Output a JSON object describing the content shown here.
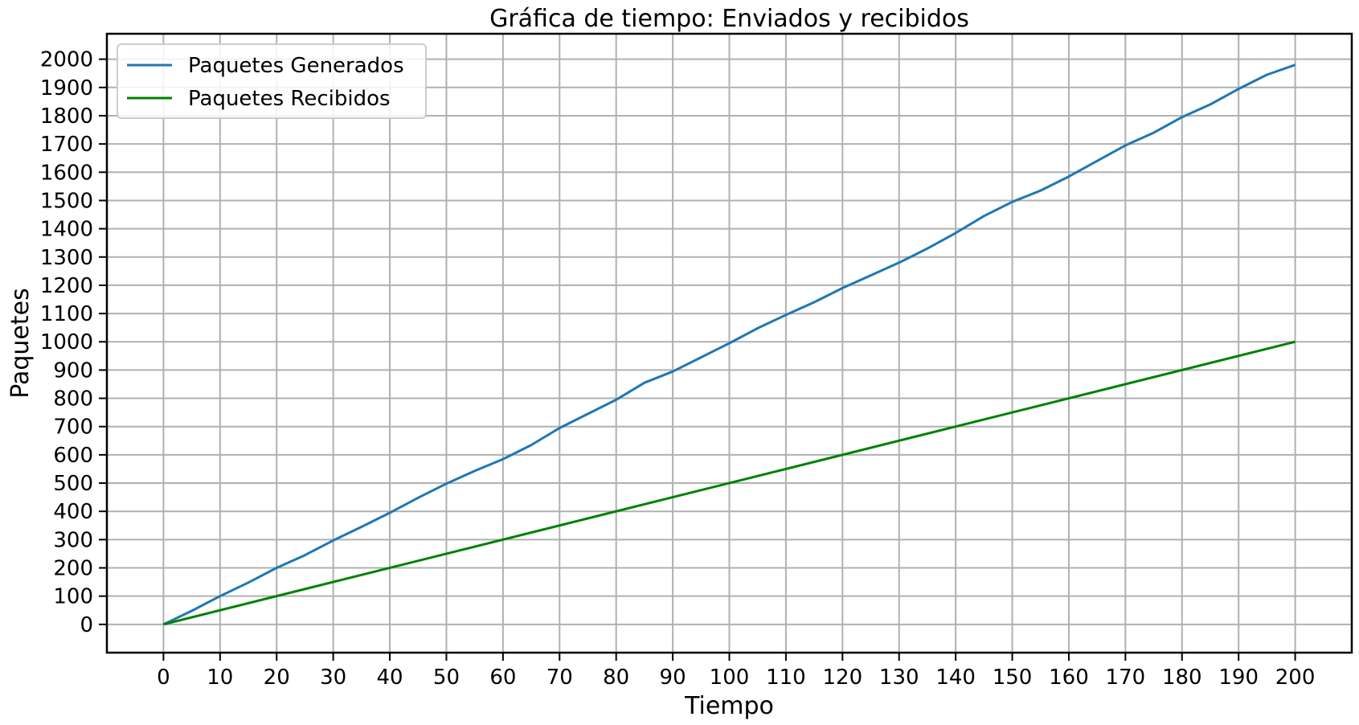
{
  "chart_data": {
    "type": "line",
    "title": "Gráfica de tiempo: Enviados y recibidos",
    "xlabel": "Tiempo",
    "ylabel": "Paquetes",
    "xlim": [
      -10,
      210
    ],
    "ylim": [
      -100,
      2090
    ],
    "xticks": [
      0,
      10,
      20,
      30,
      40,
      50,
      60,
      70,
      80,
      90,
      100,
      110,
      120,
      130,
      140,
      150,
      160,
      170,
      180,
      190,
      200
    ],
    "yticks": [
      0,
      100,
      200,
      300,
      400,
      500,
      600,
      700,
      800,
      900,
      1000,
      1100,
      1200,
      1300,
      1400,
      1500,
      1600,
      1700,
      1800,
      1900,
      2000
    ],
    "grid": true,
    "legend_position": "top-left",
    "series": [
      {
        "name": "Paquetes Generados",
        "color": "#1f77b4",
        "x": [
          0,
          5,
          10,
          15,
          20,
          25,
          30,
          35,
          40,
          45,
          50,
          55,
          60,
          65,
          70,
          75,
          80,
          85,
          90,
          95,
          100,
          105,
          110,
          115,
          120,
          125,
          130,
          135,
          140,
          145,
          150,
          155,
          160,
          165,
          170,
          175,
          180,
          185,
          190,
          195,
          200
        ],
        "y": [
          0,
          48,
          100,
          148,
          200,
          245,
          297,
          345,
          395,
          448,
          498,
          543,
          585,
          635,
          695,
          745,
          795,
          855,
          895,
          945,
          995,
          1048,
          1095,
          1140,
          1190,
          1235,
          1280,
          1330,
          1385,
          1445,
          1495,
          1535,
          1585,
          1640,
          1695,
          1740,
          1795,
          1840,
          1895,
          1945,
          1980
        ]
      },
      {
        "name": "Paquetes Recibidos",
        "color": "#008000",
        "x": [
          0,
          200
        ],
        "y": [
          0,
          1000
        ]
      }
    ]
  }
}
